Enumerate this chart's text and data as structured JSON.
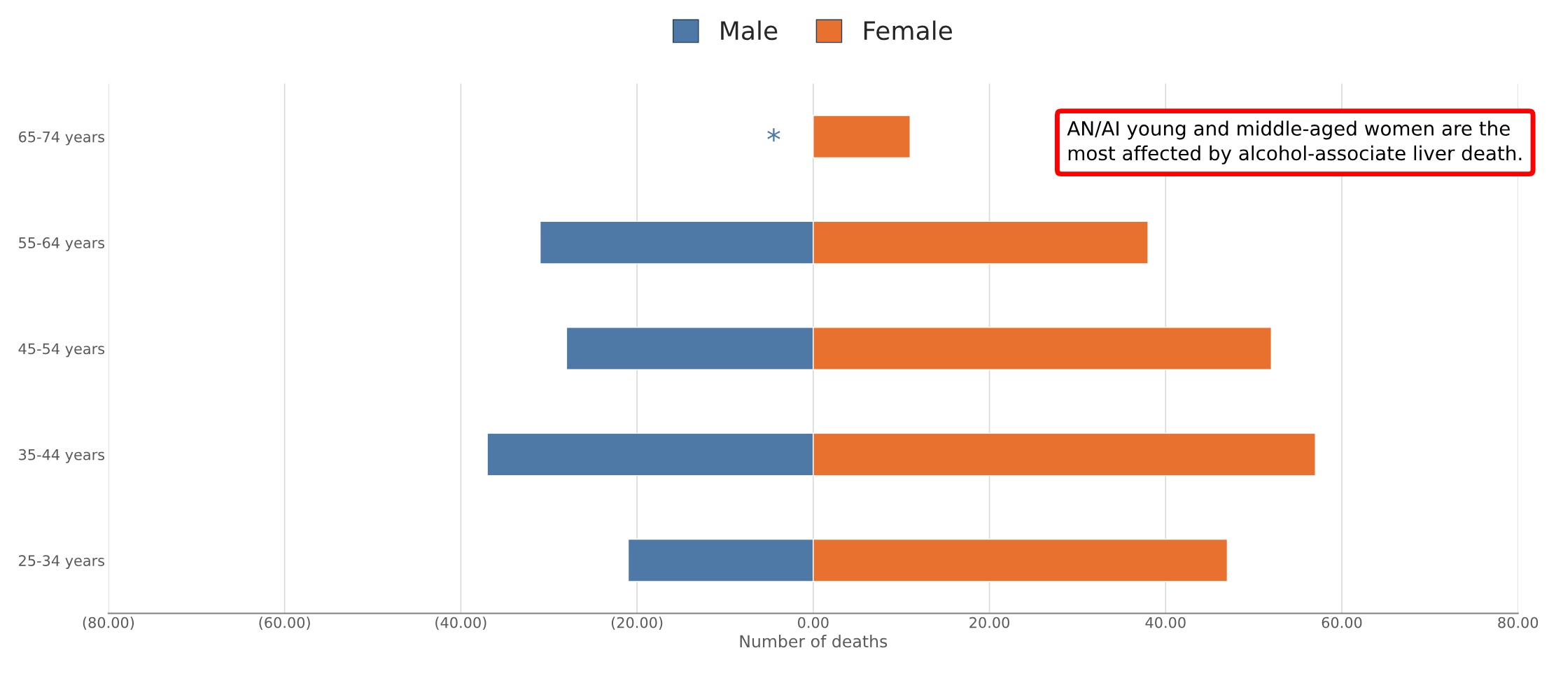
{
  "chart_data": {
    "type": "bar",
    "orientation": "horizontal",
    "xlabel": "Number of deaths",
    "categories": [
      "65-74 years",
      "55-64 years",
      "45-54 years",
      "35-44 years",
      "25-34 years"
    ],
    "series": [
      {
        "name": "Male",
        "color": "#4e79a7",
        "values": [
          null,
          -31,
          -28,
          -37,
          -21
        ]
      },
      {
        "name": "Female",
        "color": "#e8712f",
        "values": [
          11,
          38,
          52,
          57,
          47
        ]
      }
    ],
    "xlim": [
      -80,
      80
    ],
    "xticks": [
      {
        "value": -80,
        "label": "(80.00)"
      },
      {
        "value": -60,
        "label": "(60.00)"
      },
      {
        "value": -40,
        "label": "(40.00)"
      },
      {
        "value": -20,
        "label": "(20.00)"
      },
      {
        "value": 0,
        "label": "0.00"
      },
      {
        "value": 20,
        "label": "20.00"
      },
      {
        "value": 40,
        "label": "40.00"
      },
      {
        "value": 60,
        "label": "60.00"
      },
      {
        "value": 80,
        "label": "80.00"
      }
    ],
    "grid": "x",
    "legend": "top",
    "stacked": true,
    "annotations": [
      "*",
      "AN/AI young and middle-aged women are the most affected by alcohol-associate liver death."
    ]
  }
}
